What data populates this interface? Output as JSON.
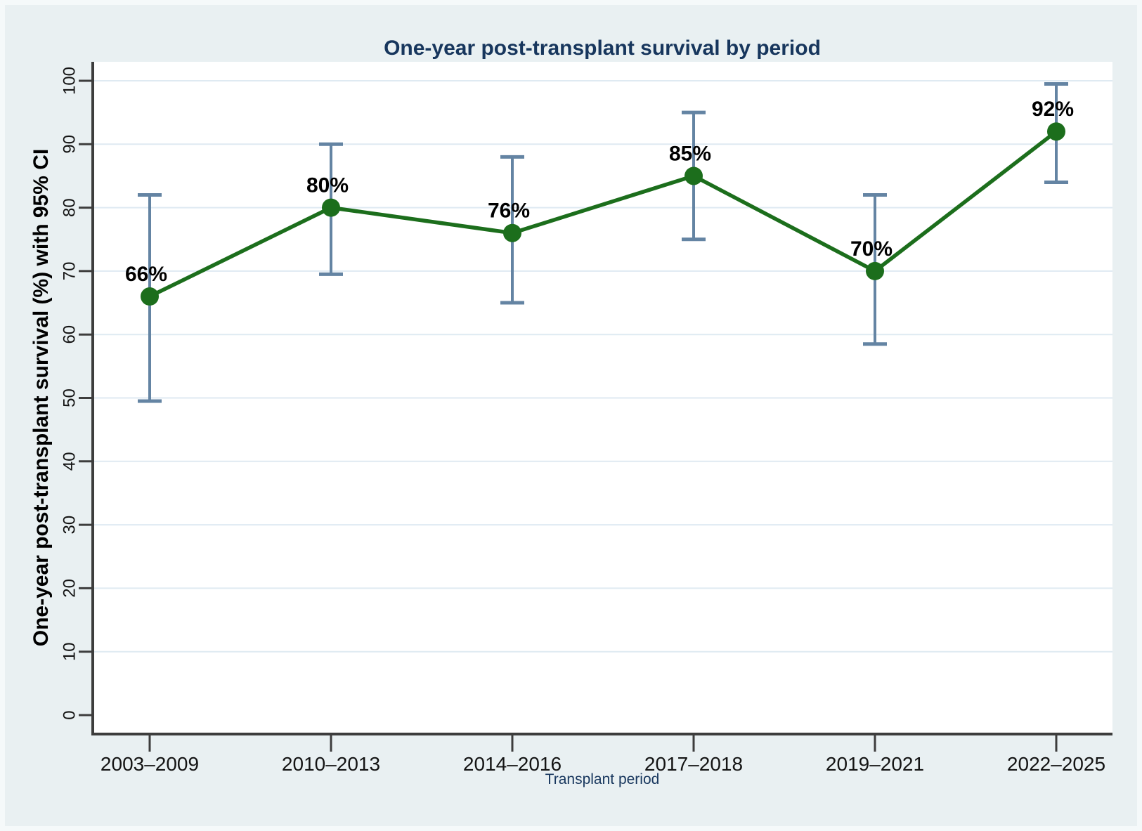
{
  "chart_data": {
    "type": "line",
    "title": "One-year post-transplant survival by period",
    "xlabel": "Transplant period",
    "ylabel": "One-year post-transplant survival (%) with 95% CI",
    "categories": [
      "2003–2009",
      "2010–2013",
      "2014–2016",
      "2017–2018",
      "2019–2021",
      "2022–2025"
    ],
    "series": [
      {
        "name": "One-year post-transplant survival (%)",
        "values": [
          66,
          80,
          76,
          85,
          70,
          92
        ],
        "point_labels": [
          "66%",
          "80%",
          "76%",
          "85%",
          "70%",
          "92%"
        ],
        "ci_low": [
          49.5,
          69.5,
          65,
          75,
          58.5,
          84
        ],
        "ci_high": [
          82,
          90,
          88,
          95,
          82,
          99.5
        ]
      }
    ],
    "ylim": [
      0,
      100
    ],
    "yticks": [
      0,
      10,
      20,
      30,
      40,
      50,
      60,
      70,
      80,
      90,
      100
    ],
    "grid": "horizontal-on",
    "legend": "none",
    "colors": {
      "background": "#e9f0f2",
      "plot_background": "#ffffff",
      "gridline": "#dfeaf2",
      "axis": "#3d3d3d",
      "line": "#1c6e1c",
      "marker": "#1c6e1c",
      "error_bar": "#6484a3",
      "title_text": "#17365d",
      "axis_title_text": "#17365d",
      "tick_text": "#141414",
      "point_label_text": "#000000"
    }
  }
}
